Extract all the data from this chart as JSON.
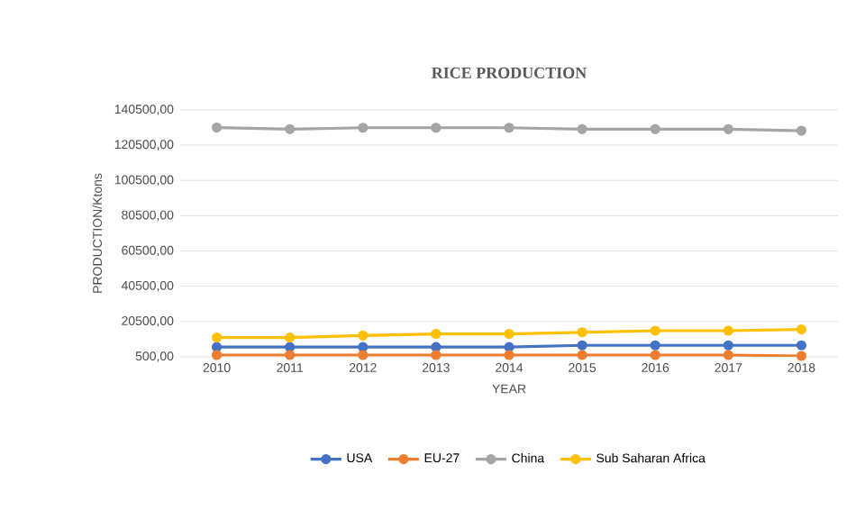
{
  "chart_data": {
    "type": "line",
    "title": "RICE  PRODUCTION",
    "xlabel": "YEAR",
    "ylabel": "PRODUCTION/Ktons",
    "categories": [
      "2010",
      "2011",
      "2012",
      "2013",
      "2014",
      "2015",
      "2016",
      "2017",
      "2018"
    ],
    "series": [
      {
        "name": "USA",
        "color": "#4472c4",
        "values": [
          6000,
          6000,
          6000,
          6000,
          6000,
          7000,
          7000,
          7000,
          7000
        ]
      },
      {
        "name": "EU-27",
        "color": "#ed7d31",
        "values": [
          1500,
          1500,
          1500,
          1500,
          1500,
          1500,
          1500,
          1500,
          1000
        ]
      },
      {
        "name": "China",
        "color": "#a5a5a5",
        "values": [
          130500,
          129600,
          130400,
          130400,
          130400,
          129600,
          129600,
          129600,
          128700
        ]
      },
      {
        "name": "Sub Saharan Africa",
        "color": "#ffc000",
        "values": [
          11400,
          11400,
          12600,
          13500,
          13500,
          14400,
          15300,
          15300,
          16000
        ]
      }
    ],
    "ylim": [
      500,
      140500
    ],
    "yticks": [
      {
        "value": 500,
        "label": "500,00"
      },
      {
        "value": 20500,
        "label": "20500,00"
      },
      {
        "value": 40500,
        "label": "40500,00"
      },
      {
        "value": 60500,
        "label": "60500,00"
      },
      {
        "value": 80500,
        "label": "80500,00"
      },
      {
        "value": 100500,
        "label": "100500,00"
      },
      {
        "value": 120500,
        "label": "120500,00"
      },
      {
        "value": 140500,
        "label": "140500,00"
      }
    ],
    "grid": "y",
    "legend": "bottom",
    "marker": "circle",
    "line_style": "solid"
  }
}
